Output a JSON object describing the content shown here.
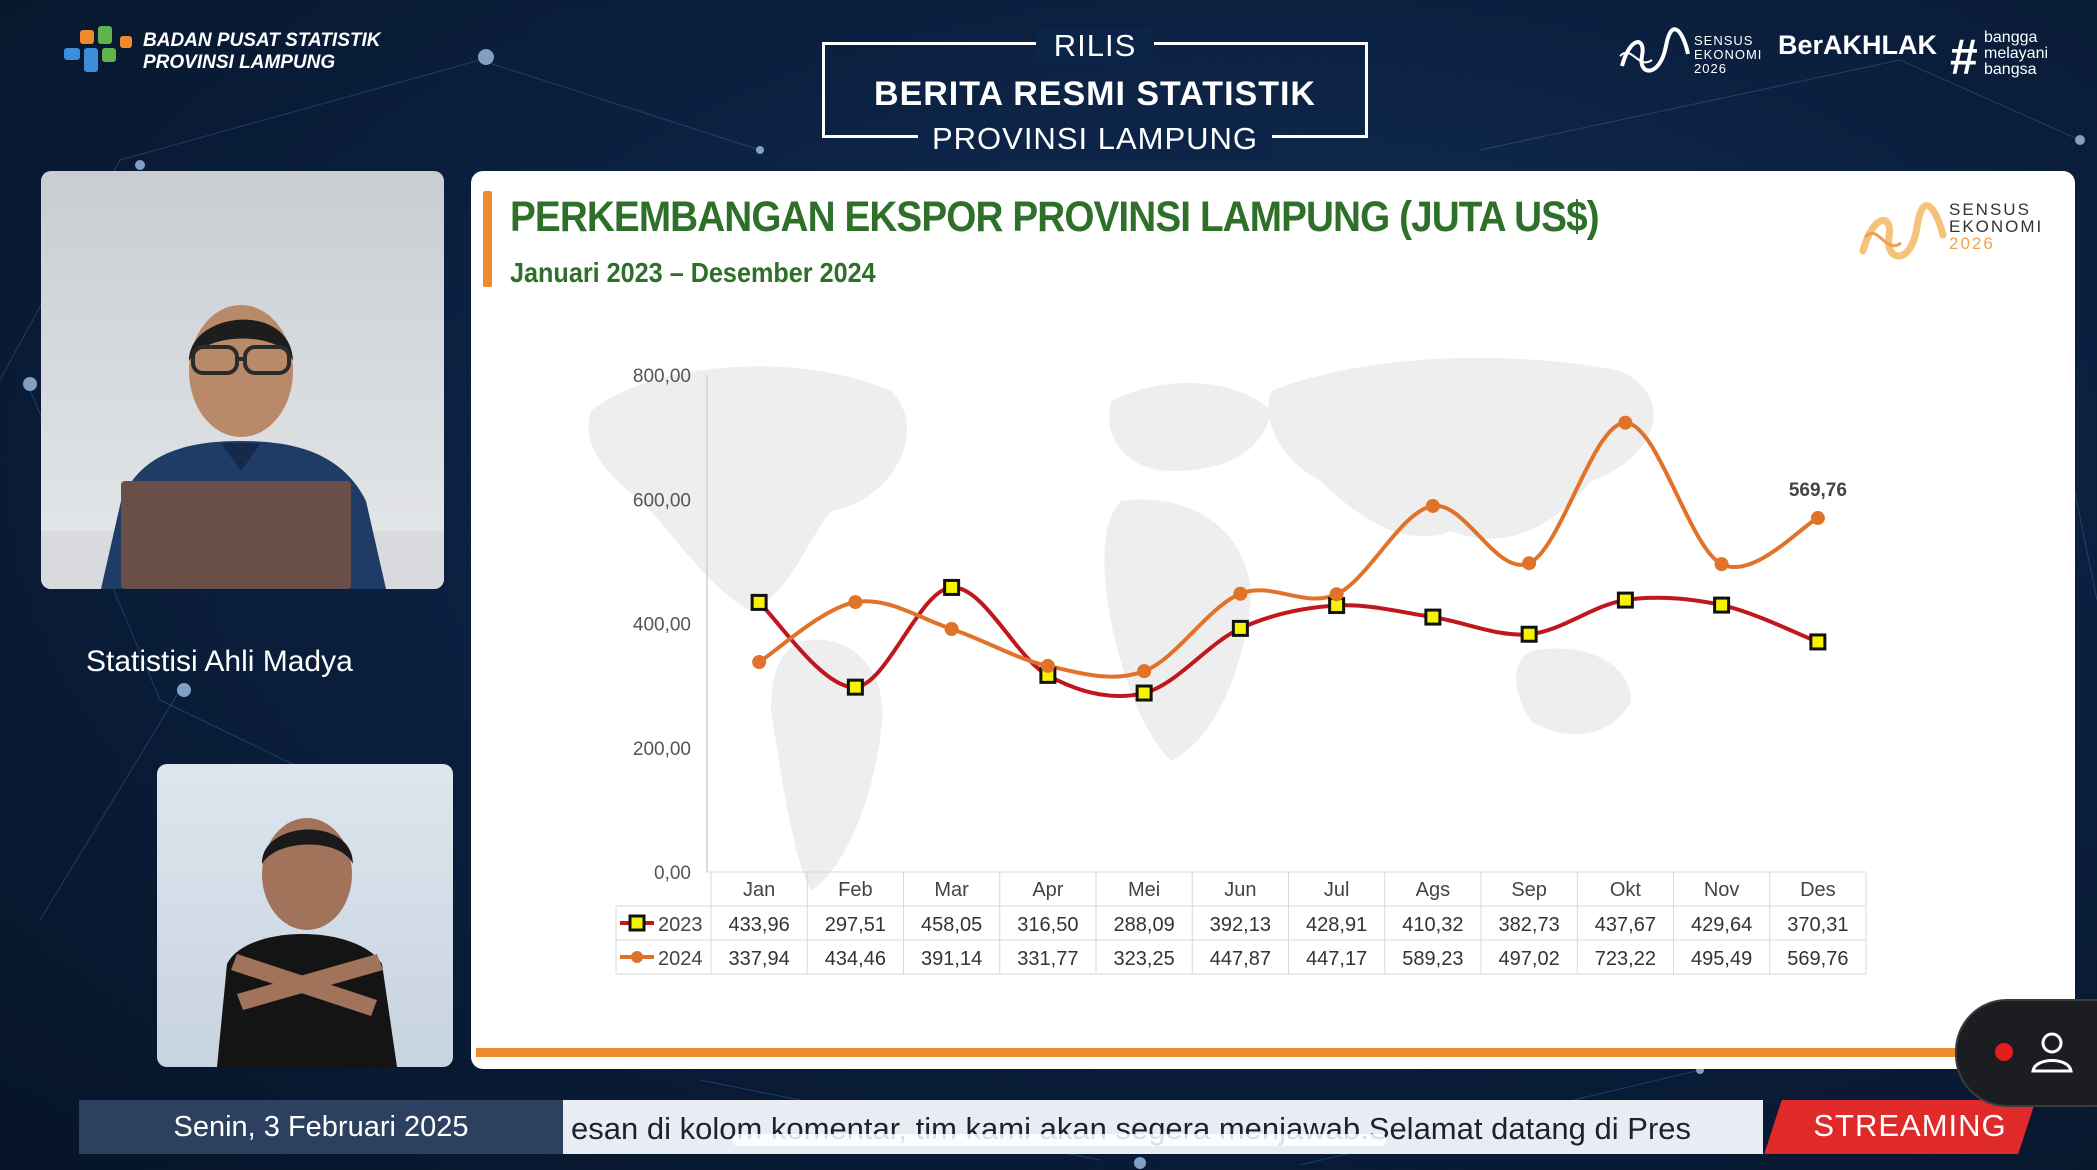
{
  "header": {
    "org_line1": "BADAN PUSAT STATISTIK",
    "org_line2": "PROVINSI LAMPUNG",
    "rilis_top": "RILIS",
    "rilis_main": "BERITA RESMI STATISTIK",
    "rilis_bottom": "PROVINSI LAMPUNG",
    "sensus_line1": "SENSUS",
    "sensus_line2": "EKONOMI",
    "sensus_line3": "2026",
    "berakhlak": "BerAKHLAK",
    "bangga_line1": "bangga",
    "bangga_line2": "melayani",
    "bangga_line3": "bangsa"
  },
  "presenter": {
    "caption": "Statistisi Ahli Madya"
  },
  "slide": {
    "title": "PERKEMBANGAN EKSPOR PROVINSI LAMPUNG (JUTA US$)",
    "subtitle": "Januari 2023 – Desember 2024",
    "logo_line1": "SENSUS",
    "logo_line2": "EKONOMI",
    "logo_line3": "2026"
  },
  "chart_data": {
    "type": "line",
    "title": "PERKEMBANGAN EKSPOR PROVINSI LAMPUNG (JUTA US$)",
    "subtitle": "Januari 2023 – Desember 2024",
    "categories": [
      "Jan",
      "Feb",
      "Mar",
      "Apr",
      "Mei",
      "Jun",
      "Jul",
      "Ags",
      "Sep",
      "Okt",
      "Nov",
      "Des"
    ],
    "yticks": [
      "0,00",
      "200,00",
      "400,00",
      "600,00",
      "800,00"
    ],
    "ylim": [
      0,
      800
    ],
    "grid": false,
    "series": [
      {
        "name": "2023",
        "color": "#c0161c",
        "marker": "square-yellow",
        "values": [
          433.96,
          297.51,
          458.05,
          316.5,
          288.09,
          392.13,
          428.91,
          410.32,
          382.73,
          437.67,
          429.64,
          370.31
        ],
        "labels": [
          "433,96",
          "297,51",
          "458,05",
          "316,50",
          "288,09",
          "392,13",
          "428,91",
          "410,32",
          "382,73",
          "437,67",
          "429,64",
          "370,31"
        ]
      },
      {
        "name": "2024",
        "color": "#e0722a",
        "marker": "circle",
        "values": [
          337.94,
          434.46,
          391.14,
          331.77,
          323.25,
          447.87,
          447.17,
          589.23,
          497.02,
          723.22,
          495.49,
          569.76
        ],
        "labels": [
          "337,94",
          "434,46",
          "391,14",
          "331,77",
          "323,25",
          "447,87",
          "447,17",
          "589,23",
          "497,02",
          "723,22",
          "495,49",
          "569,76"
        ]
      }
    ],
    "annotation": {
      "series": "2024",
      "index": 11,
      "text": "569,76"
    },
    "legend": "data-table-below"
  },
  "footer": {
    "date": "Senin, 3 Februari 2025",
    "ticker": "esan di kolom komentar, tim kami akan segera menjawab.Selamat datang di Pres",
    "streaming": "STREAMING"
  }
}
